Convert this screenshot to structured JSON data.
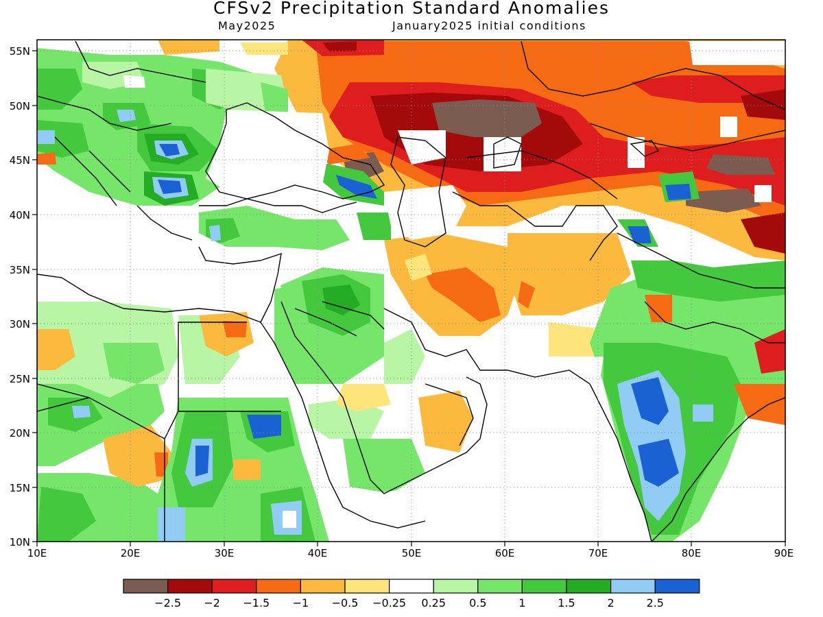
{
  "header": {
    "title": "CFSv2 Precipitation Standard Anomalies",
    "valid_month": "May2025",
    "init": "January2025 initial conditions"
  },
  "map": {
    "lon_range": [
      10,
      90
    ],
    "lat_range": [
      10,
      56
    ],
    "x_ticks": [
      "10E",
      "20E",
      "30E",
      "40E",
      "50E",
      "60E",
      "70E",
      "80E",
      "90E"
    ],
    "y_ticks": [
      "55N",
      "50N",
      "45N",
      "40N",
      "35N",
      "30N",
      "25N",
      "20N",
      "15N",
      "10N"
    ],
    "gridlines": "dotted",
    "palette": {
      "brown": "#7c5c50",
      "darkred": "#a50a0a",
      "red": "#de1e1e",
      "orange": "#f76a14",
      "lightorange": "#fbb93e",
      "yellow": "#fde57c",
      "white": "#ffffff",
      "palegreen": "#b8f5a4",
      "lightgreen": "#75e66a",
      "green": "#44c93e",
      "darkgreen": "#24ac25",
      "lightblue": "#91ccf5",
      "blue": "#1a61d3"
    }
  },
  "colorbar": {
    "colors": [
      "#7c5c50",
      "#a50a0a",
      "#de1e1e",
      "#f76a14",
      "#fbb93e",
      "#fde57c",
      "#ffffff",
      "#b8f5a4",
      "#75e66a",
      "#44c93e",
      "#24ac25",
      "#91ccf5",
      "#1a61d3"
    ],
    "labels": [
      "−2.5",
      "−2",
      "−1.5",
      "−1",
      "−0.5",
      "−0.25",
      "0.25",
      "0.5",
      "1",
      "1.5",
      "2",
      "2.5"
    ]
  }
}
